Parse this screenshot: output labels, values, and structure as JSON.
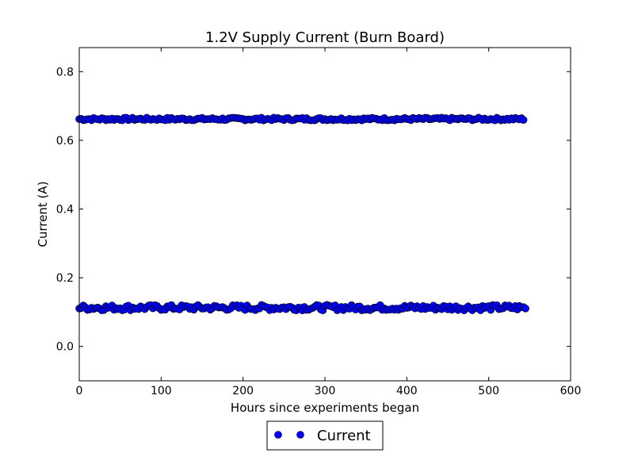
{
  "chart_data": {
    "type": "scatter",
    "title": "1.2V Supply Current (Burn Board)",
    "xlabel": "Hours since experiments began",
    "ylabel": "Current (A)",
    "xlim": [
      0,
      600
    ],
    "ylim": [
      -0.1,
      0.87
    ],
    "xticks": [
      0,
      100,
      200,
      300,
      400,
      500,
      600
    ],
    "yticks": [
      0.0,
      0.2,
      0.4,
      0.6,
      0.8
    ],
    "xtick_labels": [
      "0",
      "100",
      "200",
      "300",
      "400",
      "500",
      "600"
    ],
    "ytick_labels": [
      "0.0",
      "0.2",
      "0.4",
      "0.6",
      "0.8"
    ],
    "grid": false,
    "legend": {
      "entries": [
        "Current"
      ],
      "placement": "bottom-center, outside plot"
    },
    "series": [
      {
        "name": "Current",
        "color": "#0000ff",
        "marker": "circle",
        "description_of_data": "two horizontal bands of readings sampled roughly every 2.5 hours from 0 to ~546 hours",
        "bands": [
          {
            "x_start": 0,
            "x_end": 543,
            "x_step": 2.5,
            "y_center": 0.662,
            "y_jitter": 0.004
          },
          {
            "x_start": 0,
            "x_end": 546,
            "x_step": 2.5,
            "y_center": 0.113,
            "y_jitter": 0.008
          }
        ]
      }
    ]
  }
}
